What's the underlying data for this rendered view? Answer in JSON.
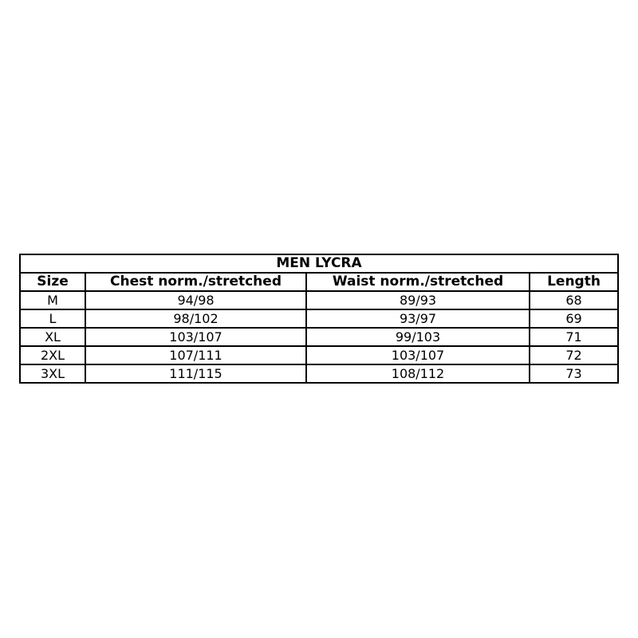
{
  "page": {
    "background_color": "#ffffff",
    "border_color": "#000000",
    "text_color": "#000000"
  },
  "table": {
    "title": "MEN LYCRA",
    "columns": [
      "Size",
      "Chest norm./stretched",
      "Waist norm./stretched",
      "Length"
    ],
    "rows": [
      [
        "M",
        "94/98",
        "89/93",
        "68"
      ],
      [
        "L",
        "98/102",
        "93/97",
        "69"
      ],
      [
        "XL",
        "103/107",
        "99/103",
        "71"
      ],
      [
        "2XL",
        "107/111",
        "103/107",
        "72"
      ],
      [
        "3XL",
        "111/115",
        "108/112",
        "73"
      ]
    ]
  }
}
